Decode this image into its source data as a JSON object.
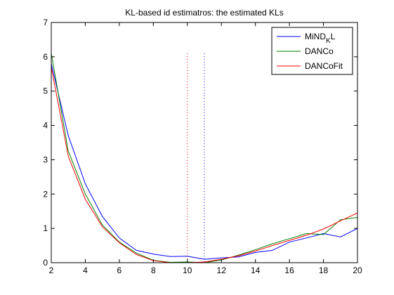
{
  "chart_data": {
    "type": "line",
    "title": "KL-based id estimatros: the estimated KLs",
    "xlabel": "",
    "ylabel": "",
    "xlim": [
      2,
      20
    ],
    "ylim": [
      0,
      7
    ],
    "xticks": [
      2,
      4,
      6,
      8,
      10,
      12,
      14,
      16,
      18,
      20
    ],
    "yticks": [
      0,
      1,
      2,
      3,
      4,
      5,
      6,
      7
    ],
    "grid": false,
    "legend_position": "top-right",
    "x": [
      2,
      3,
      4,
      5,
      6,
      7,
      8,
      9,
      10,
      11,
      12,
      13,
      14,
      15,
      16,
      17,
      18,
      19,
      20
    ],
    "series": [
      {
        "name": "MiND_KL",
        "legend_main": "MiND",
        "legend_sub": "K",
        "legend_tail": "L",
        "color": "#0000ff",
        "values": [
          5.8,
          3.7,
          2.3,
          1.35,
          0.72,
          0.36,
          0.25,
          0.18,
          0.19,
          0.1,
          0.14,
          0.17,
          0.3,
          0.36,
          0.6,
          0.72,
          0.85,
          0.75,
          1.0
        ]
      },
      {
        "name": "DANCo",
        "color": "#008000",
        "values": [
          6.1,
          3.25,
          2.0,
          1.1,
          0.6,
          0.28,
          0.07,
          0.01,
          0.02,
          0.0,
          0.08,
          0.22,
          0.38,
          0.55,
          0.7,
          0.85,
          0.82,
          1.25,
          1.32
        ]
      },
      {
        "name": "DANCoFit",
        "color": "#ff0000",
        "values": [
          5.7,
          3.1,
          1.85,
          1.05,
          0.58,
          0.24,
          0.06,
          0.0,
          0.0,
          0.02,
          0.1,
          0.2,
          0.34,
          0.5,
          0.65,
          0.8,
          0.98,
          1.22,
          1.45
        ]
      }
    ],
    "vertical_lines": [
      {
        "x": 10,
        "y_top": 6.1,
        "color": "#ff0000"
      },
      {
        "x": 11,
        "y_top": 6.1,
        "color": "#0000ff"
      }
    ]
  }
}
